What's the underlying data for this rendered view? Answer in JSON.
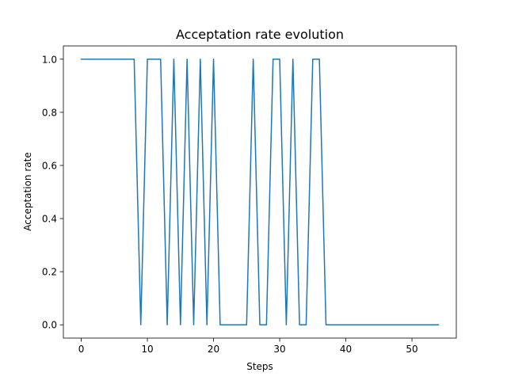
{
  "chart_data": {
    "type": "line",
    "title": "Acceptation rate evolution",
    "xlabel": "Steps",
    "ylabel": "Acceptation rate",
    "xlim": [
      -2.7,
      56.7
    ],
    "ylim": [
      -0.05,
      1.05
    ],
    "xticks": [
      0,
      10,
      20,
      30,
      40,
      50
    ],
    "yticks": [
      "0.0",
      "0.2",
      "0.4",
      "0.6",
      "0.8",
      "1.0"
    ],
    "grid": false,
    "line_color": "#1f77b4",
    "series": [
      {
        "x": [
          0,
          1,
          2,
          3,
          4,
          5,
          6,
          7,
          8,
          9,
          10,
          11,
          12,
          13,
          14,
          15,
          16,
          17,
          18,
          19,
          20,
          21,
          22,
          23,
          24,
          25,
          26,
          27,
          28,
          29,
          30,
          31,
          32,
          33,
          34,
          35,
          36,
          37,
          38,
          39,
          40,
          41,
          42,
          43,
          44,
          45,
          46,
          47,
          48,
          49,
          50,
          51,
          52,
          53,
          54
        ],
        "values": [
          1,
          1,
          1,
          1,
          1,
          1,
          1,
          1,
          1,
          0,
          1,
          1,
          1,
          0,
          1,
          0,
          1,
          0,
          1,
          0,
          1,
          0,
          0,
          0,
          0,
          0,
          1,
          0,
          0,
          1,
          1,
          0,
          1,
          0,
          0,
          1,
          1,
          0,
          0,
          0,
          0,
          0,
          0,
          0,
          0,
          0,
          0,
          0,
          0,
          0,
          0,
          0,
          0,
          0,
          0
        ]
      }
    ]
  }
}
